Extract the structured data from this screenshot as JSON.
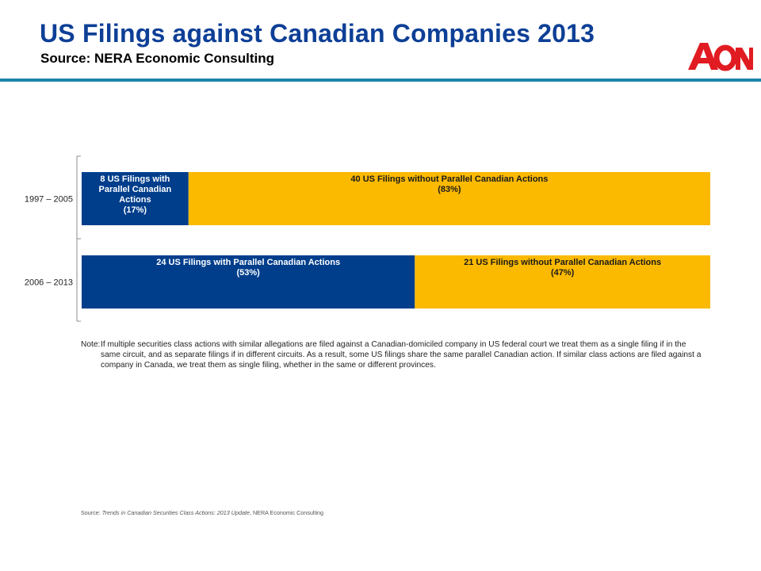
{
  "header": {
    "title": "US Filings against Canadian Companies 2013",
    "subtitle": "Source:  NERA Economic Consulting"
  },
  "logo": {
    "text": "AON"
  },
  "colors": {
    "title": "#0d3f96",
    "rule": "#1a86a8",
    "blue_bar": "#003e8c",
    "gold_bar": "#fbb900",
    "logo": "#e11b22"
  },
  "chart_data": {
    "type": "bar",
    "orientation": "horizontal",
    "stacked": true,
    "normalized": true,
    "categories": [
      "1997 – 2005",
      "2006 – 2013"
    ],
    "series": [
      {
        "values": [
          17,
          53
        ],
        "labels": [
          [
            "8 US Filings with",
            "Parallel Canadian",
            "Actions",
            "(17%)"
          ],
          [
            "24 US Filings with Parallel Canadian Actions",
            "(53%)"
          ]
        ]
      },
      {
        "values": [
          83,
          47
        ],
        "labels": [
          [
            "40 US Filings without Parallel Canadian Actions",
            "(83%)"
          ],
          [
            "21 US Filings without Parallel Canadian Actions",
            "(47%)"
          ]
        ]
      }
    ],
    "xlim": [
      0,
      100
    ]
  },
  "note": {
    "label": "Note:",
    "text": "If multiple securities class actions with similar allegations are filed against a Canadian-domiciled company in US federal court we treat them as a single filing if in the same circuit, and as separate filings if in different circuits. As a result, some US filings share the same parallel Canadian action. If similar class actions are filed against a company in Canada, we treat them as single filing, whether in the same or different provinces."
  },
  "source_line": {
    "prefix": "Source:  ",
    "italic": "Trends in Canadian Securities Class Actions: 2013 Update",
    "suffix": ", NERA Economic Consulting"
  }
}
